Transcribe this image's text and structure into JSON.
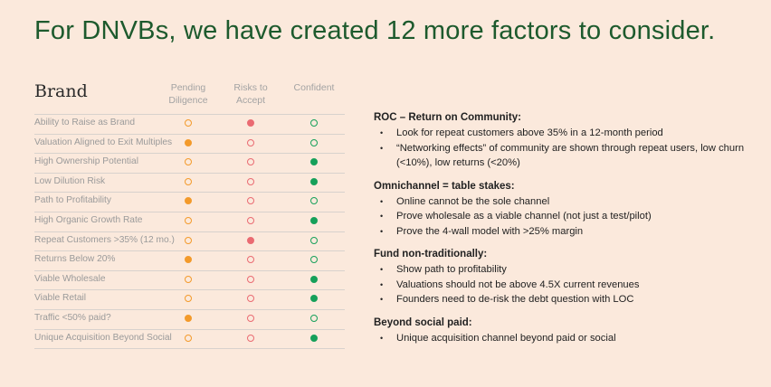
{
  "title": "For DNVBs, we have created 12 more factors to consider.",
  "table": {
    "label": "Brand",
    "headers": [
      "Pending\nDiligence",
      "Risks to\nAccept",
      "Confident"
    ],
    "colors": {
      "orange": "#f39a2b",
      "red": "#ea6b72",
      "green": "#16a05a"
    },
    "rows": [
      {
        "label": "Ability to Raise as Brand",
        "filled": "risks"
      },
      {
        "label": "Valuation Aligned to Exit Multiples",
        "filled": "pending"
      },
      {
        "label": "High Ownership Potential",
        "filled": "confident"
      },
      {
        "label": "Low Dilution Risk",
        "filled": "confident"
      },
      {
        "label": "Path to Profitability",
        "filled": "pending"
      },
      {
        "label": "High Organic Growth Rate",
        "filled": "confident"
      },
      {
        "label": "Repeat Customers >35% (12 mo.)",
        "filled": "risks"
      },
      {
        "label": "Returns Below 20%",
        "filled": "pending"
      },
      {
        "label": "Viable Wholesale",
        "filled": "confident"
      },
      {
        "label": "Viable Retail",
        "filled": "confident"
      },
      {
        "label": "Traffic <50% paid?",
        "filled": "pending"
      },
      {
        "label": "Unique Acquisition Beyond Social",
        "filled": "confident"
      }
    ]
  },
  "sections": [
    {
      "heading": "ROC – Return on Community:",
      "bullets": [
        "Look for repeat customers above 35% in a 12-month period",
        "“Networking effects” of community are shown through repeat users, low churn (<10%), low returns (<20%)"
      ]
    },
    {
      "heading": "Omnichannel = table stakes:",
      "bullets": [
        "Online cannot be the sole channel",
        "Prove wholesale as a viable channel (not just a test/pilot)",
        "Prove the 4-wall model with >25% margin"
      ]
    },
    {
      "heading": "Fund non-traditionally:",
      "bullets": [
        "Show path to profitability",
        "Valuations should not be above 4.5X current revenues",
        "Founders need to de-risk the debt question with LOC"
      ]
    },
    {
      "heading": "Beyond social paid:",
      "bullets": [
        "Unique acquisition channel beyond paid or social"
      ]
    }
  ]
}
